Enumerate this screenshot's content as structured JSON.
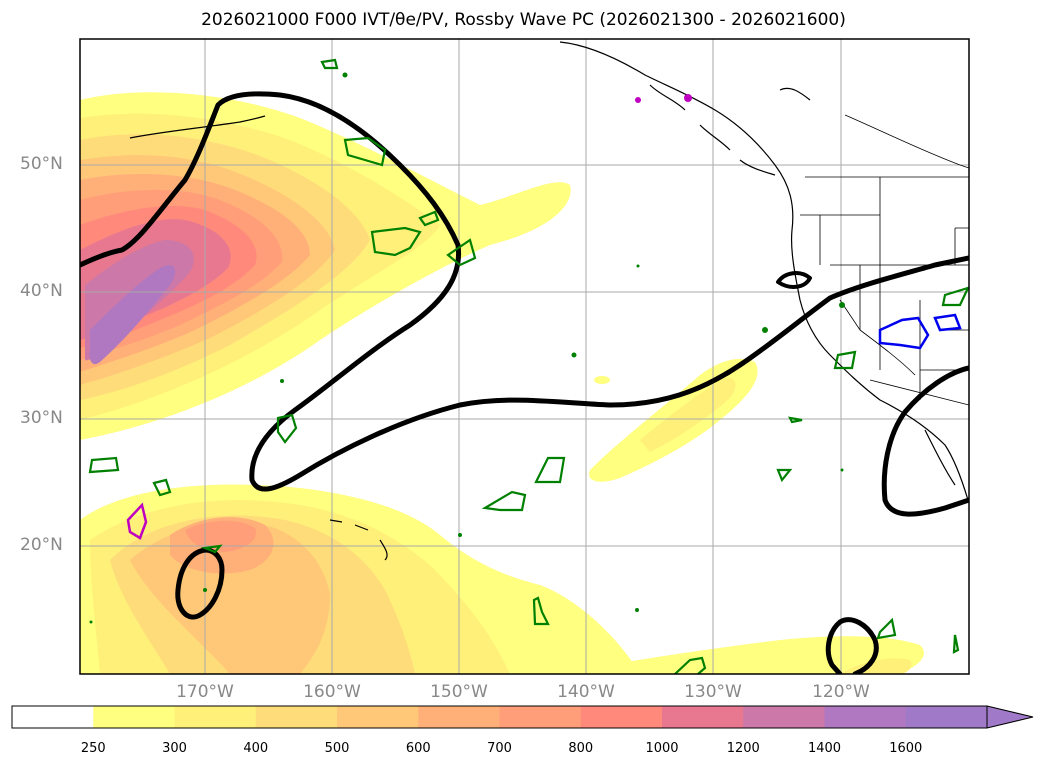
{
  "title": "2026021000 F000 IVT/θe/PV, Rossby Wave PC (2026021300 - 2026021600)",
  "colors": {
    "rossby_contour": "#000000",
    "theta_e_contour": "#008000",
    "pv_contour_blue": "#0000ee",
    "pv_contour_magenta": "#c000c0",
    "gridline": "#aaaaaa",
    "axis_label": "#888888"
  },
  "map": {
    "lat_labels": [
      "50°N",
      "40°N",
      "30°N",
      "20°N"
    ],
    "lon_labels": [
      "170°W",
      "160°W",
      "150°W",
      "140°W",
      "130°W",
      "120°W"
    ]
  },
  "colorbar": {
    "labels": [
      "250",
      "300",
      "400",
      "500",
      "600",
      "700",
      "800",
      "1000",
      "1200",
      "1400",
      "1600"
    ],
    "colors": [
      "#ffffff",
      "#ffff80",
      "#fff07a",
      "#ffdc7a",
      "#ffc878",
      "#ffb078",
      "#ff9e78",
      "#ff8a7c",
      "#e87890",
      "#cc78a8",
      "#b078c0",
      "#a07ac8"
    ],
    "extend": "max"
  }
}
